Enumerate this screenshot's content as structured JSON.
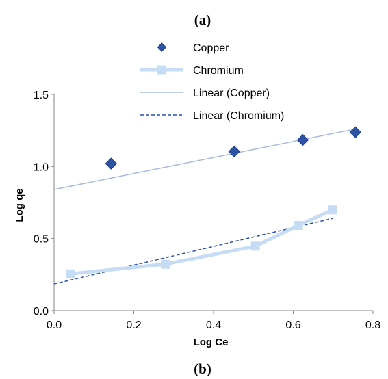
{
  "panel_labels": {
    "top": "(a)",
    "bottom": "(b)"
  },
  "chart_data": {
    "type": "scatter",
    "xlabel": "Log Ce",
    "ylabel": "Log qe",
    "xlim": [
      0.0,
      0.8
    ],
    "ylim": [
      0.0,
      1.5
    ],
    "x_ticks": [
      "0.0",
      "0.2",
      "0.4",
      "0.6",
      "0.8"
    ],
    "y_ticks": [
      "0.0",
      "0.5",
      "1.0",
      "1.5"
    ],
    "grid": false,
    "legend_position": "top-right",
    "series": [
      {
        "name": "Copper",
        "kind": "markers",
        "marker": "diamond",
        "color": "#2E53A5",
        "x": [
          0.143,
          0.452,
          0.624,
          0.756
        ],
        "y": [
          1.02,
          1.104,
          1.184,
          1.238
        ]
      },
      {
        "name": "Chromium",
        "kind": "line-markers",
        "marker": "square",
        "color": "#C6DCF4",
        "x": [
          0.041,
          0.279,
          0.505,
          0.613,
          0.699
        ],
        "y": [
          0.255,
          0.322,
          0.447,
          0.591,
          0.699
        ]
      },
      {
        "name": "Linear (Copper)",
        "kind": "trendline",
        "style": "solid",
        "color": "#A7B9E0",
        "x": [
          0.0,
          0.756
        ],
        "y": [
          0.84,
          1.26
        ]
      },
      {
        "name": "Linear (Chromium)",
        "kind": "trendline",
        "style": "dashed",
        "color": "#2850B4",
        "x": [
          0.0,
          0.699
        ],
        "y": [
          0.185,
          0.64
        ]
      }
    ]
  }
}
